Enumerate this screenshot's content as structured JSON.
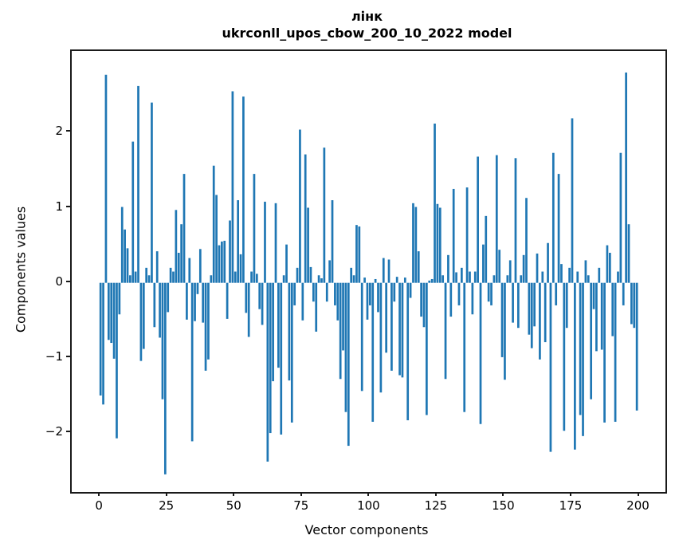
{
  "figure": {
    "title_line1": "лінк",
    "title_line2": "ukrconll_upos_cbow_200_10_2022 model"
  },
  "chart_data": {
    "type": "bar",
    "title": "лінк\nukrconll_upos_cbow_200_10_2022 model",
    "xlabel": "Vector components",
    "ylabel": "Components values",
    "bar_color": "#1f77b4",
    "x_ticks": [
      0,
      25,
      50,
      75,
      100,
      125,
      150,
      175,
      200
    ],
    "y_ticks": [
      -2,
      -1,
      0,
      1,
      2
    ],
    "y_tick_labels": [
      "−2",
      "−1",
      "0",
      "1",
      "2"
    ],
    "xlim": [
      -10.7,
      209.6
    ],
    "ylim": [
      -2.785,
      3.086
    ],
    "grid": false,
    "legend": null,
    "bar_width": 0.8,
    "x": "0..199 (component index)",
    "values": [
      -1.5,
      -1.62,
      2.77,
      -0.76,
      -0.8,
      -1.01,
      -2.07,
      -0.42,
      1.01,
      0.71,
      0.46,
      0.1,
      1.88,
      0.15,
      2.62,
      -1.04,
      -0.88,
      0.2,
      0.1,
      2.4,
      -0.59,
      0.42,
      -0.73,
      -1.55,
      -2.55,
      -0.39,
      0.2,
      0.15,
      0.97,
      0.4,
      0.78,
      1.45,
      -0.49,
      0.33,
      -2.11,
      -0.51,
      -0.15,
      0.45,
      -0.53,
      -1.17,
      -1.02,
      0.1,
      1.56,
      1.17,
      0.5,
      0.55,
      0.56,
      -0.48,
      0.83,
      2.55,
      0.15,
      1.1,
      0.38,
      2.48,
      -0.4,
      -0.72,
      0.15,
      1.45,
      0.12,
      -0.35,
      -0.56,
      1.08,
      -2.38,
      -2.0,
      -1.31,
      1.06,
      -1.13,
      -2.02,
      0.1,
      0.51,
      -1.3,
      -1.86,
      -0.3,
      0.2,
      2.04,
      -0.5,
      1.71,
      1.0,
      0.21,
      -0.25,
      -0.65,
      0.1,
      0.06,
      1.8,
      -0.25,
      0.3,
      1.1,
      -0.3,
      -0.5,
      -1.28,
      -0.9,
      -1.72,
      -2.17,
      0.2,
      0.1,
      0.77,
      0.75,
      -1.44,
      0.07,
      -0.49,
      -0.3,
      -1.85,
      0.05,
      -0.39,
      -1.46,
      0.33,
      -0.93,
      0.31,
      -1.17,
      -0.25,
      0.08,
      -1.23,
      -1.26,
      0.07,
      -1.83,
      -0.2,
      1.06,
      1.01,
      0.42,
      -0.45,
      -0.59,
      -1.76,
      0.03,
      0.05,
      2.12,
      1.05,
      1.0,
      0.1,
      -1.28,
      0.37,
      -0.45,
      1.25,
      0.14,
      -0.3,
      0.2,
      -1.72,
      1.27,
      0.15,
      -0.42,
      0.15,
      1.68,
      -1.88,
      0.51,
      0.89,
      -0.25,
      -0.3,
      0.1,
      1.7,
      0.44,
      -0.99,
      -1.29,
      0.1,
      0.3,
      -0.53,
      1.66,
      -0.6,
      0.1,
      0.37,
      1.13,
      -0.69,
      -0.87,
      -0.58,
      0.39,
      -1.02,
      0.15,
      -0.79,
      0.53,
      -2.25,
      1.73,
      -0.3,
      1.45,
      0.25,
      -1.97,
      -0.6,
      0.2,
      2.19,
      -2.22,
      0.15,
      -1.76,
      -2.04,
      0.3,
      0.1,
      -1.55,
      -0.35,
      -0.91,
      0.2,
      -0.89,
      -1.86,
      0.5,
      0.4,
      -0.71,
      -1.85,
      0.15,
      1.73,
      -0.3,
      2.8,
      0.78,
      -0.55,
      -0.6,
      -1.7
    ]
  }
}
